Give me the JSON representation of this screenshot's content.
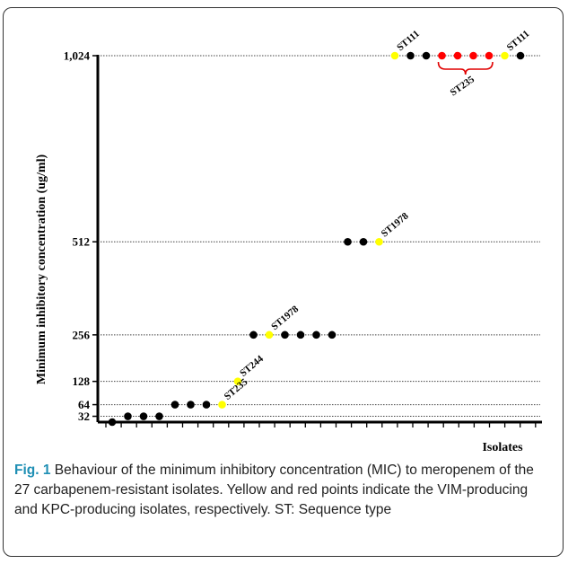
{
  "chart_data": {
    "type": "scatter",
    "ylabel": "Minimum inhibitory  concentration (ug/ml)",
    "xlabel": "Isolates",
    "y_ticks": [
      {
        "value": 1024,
        "label": "1,024"
      },
      {
        "value": 512,
        "label": "512"
      },
      {
        "value": 256,
        "label": "256"
      },
      {
        "value": 128,
        "label": "128"
      },
      {
        "value": 64,
        "label": "64"
      },
      {
        "value": 32,
        "label": "32"
      }
    ],
    "grid": "horizontal dotted lines at each y tick",
    "colors": {
      "other": "#000000",
      "vim": "#ffff00",
      "kpc": "#ff0000"
    },
    "points": [
      {
        "x": 1,
        "y": 16,
        "group": "other"
      },
      {
        "x": 2,
        "y": 32,
        "group": "other"
      },
      {
        "x": 3,
        "y": 32,
        "group": "other"
      },
      {
        "x": 4,
        "y": 32,
        "group": "other"
      },
      {
        "x": 5,
        "y": 64,
        "group": "other"
      },
      {
        "x": 6,
        "y": 64,
        "group": "other"
      },
      {
        "x": 7,
        "y": 64,
        "group": "other"
      },
      {
        "x": 8,
        "y": 64,
        "group": "vim"
      },
      {
        "x": 9,
        "y": 128,
        "group": "vim"
      },
      {
        "x": 10,
        "y": 256,
        "group": "other"
      },
      {
        "x": 11,
        "y": 256,
        "group": "vim"
      },
      {
        "x": 12,
        "y": 256,
        "group": "other"
      },
      {
        "x": 13,
        "y": 256,
        "group": "other"
      },
      {
        "x": 14,
        "y": 256,
        "group": "other"
      },
      {
        "x": 15,
        "y": 256,
        "group": "other"
      },
      {
        "x": 16,
        "y": 512,
        "group": "other"
      },
      {
        "x": 17,
        "y": 512,
        "group": "other"
      },
      {
        "x": 18,
        "y": 512,
        "group": "vim"
      },
      {
        "x": 19,
        "y": 1024,
        "group": "vim"
      },
      {
        "x": 20,
        "y": 1024,
        "group": "other"
      },
      {
        "x": 21,
        "y": 1024,
        "group": "other"
      },
      {
        "x": 22,
        "y": 1024,
        "group": "kpc"
      },
      {
        "x": 23,
        "y": 1024,
        "group": "kpc"
      },
      {
        "x": 24,
        "y": 1024,
        "group": "kpc"
      },
      {
        "x": 25,
        "y": 1024,
        "group": "kpc"
      },
      {
        "x": 26,
        "y": 1024,
        "group": "vim"
      },
      {
        "x": 27,
        "y": 1024,
        "group": "other"
      }
    ],
    "annotations": [
      {
        "text": "ST235",
        "x": 8,
        "y": 64
      },
      {
        "text": "ST244",
        "x": 9,
        "y": 128
      },
      {
        "text": "ST1978",
        "x": 11,
        "y": 256
      },
      {
        "text": "ST1978",
        "x": 18,
        "y": 512
      },
      {
        "text": "ST111",
        "x": 19,
        "y": 1024
      },
      {
        "text": "ST111",
        "x": 26,
        "y": 1024
      }
    ],
    "bracket": {
      "text": "ST235",
      "x_from": 22,
      "x_to": 25,
      "y": 1024
    }
  },
  "caption": {
    "label": "Fig. 1",
    "text": " Behaviour of the minimum inhibitory concentration (MIC) to meropenem of the 27 carbapenem-resistant isolates. Yellow and red points indicate the VIM-producing and KPC-producing isolates, respectively. ST: Sequence type"
  }
}
